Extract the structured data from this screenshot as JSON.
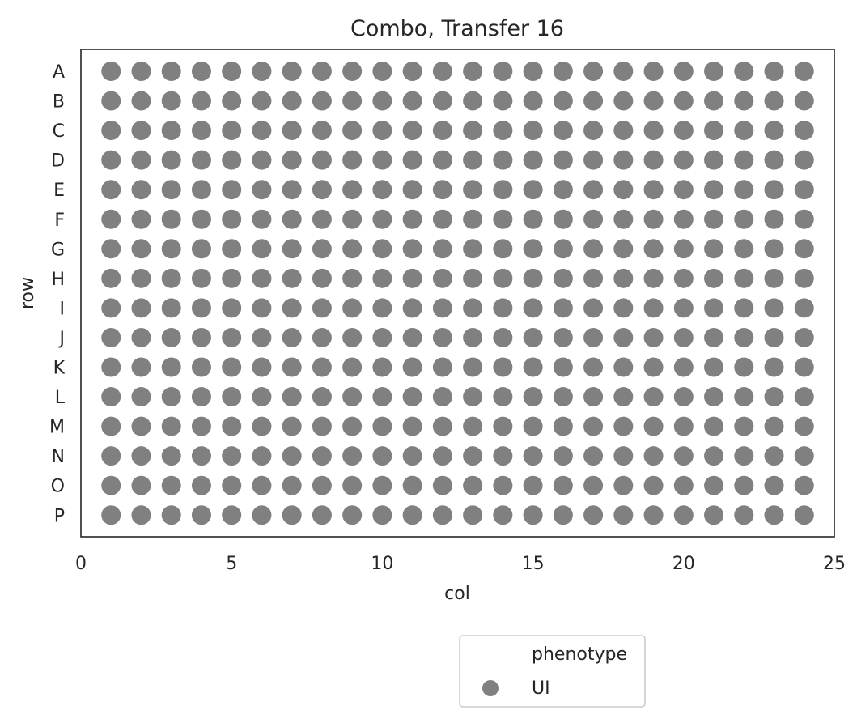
{
  "chart_data": {
    "type": "scatter",
    "title": "Combo, Transfer 16",
    "xlabel": "col",
    "ylabel": "row",
    "xlim": [
      0,
      25
    ],
    "xticks": [
      0,
      5,
      10,
      15,
      20,
      25
    ],
    "x_tick_labels": [
      "0",
      "5",
      "10",
      "15",
      "20",
      "25"
    ],
    "rows": [
      "A",
      "B",
      "C",
      "D",
      "E",
      "F",
      "G",
      "H",
      "I",
      "J",
      "K",
      "L",
      "M",
      "N",
      "O",
      "P"
    ],
    "columns": [
      1,
      2,
      3,
      4,
      5,
      6,
      7,
      8,
      9,
      10,
      11,
      12,
      13,
      14,
      15,
      16,
      17,
      18,
      19,
      20,
      21,
      22,
      23,
      24
    ],
    "series": [
      {
        "name": "UI",
        "color": "#808080",
        "points": "every (col, row) combination: columns 1-24 × rows A-P"
      }
    ],
    "grid": false,
    "legend": {
      "title": "phenotype",
      "placement": "below-center",
      "entries": [
        {
          "label": "UI",
          "color": "#808080"
        }
      ]
    }
  }
}
